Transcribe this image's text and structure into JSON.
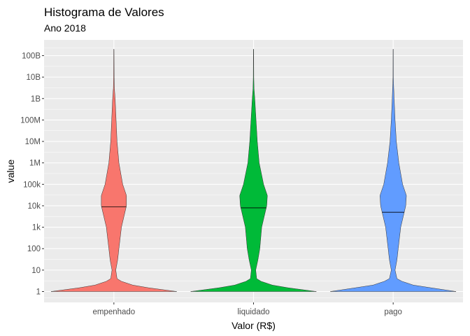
{
  "chart_data": {
    "type": "violin",
    "title": "Histograma de Valores",
    "subtitle": "Ano 2018",
    "xlabel": "Valor (R$)",
    "ylabel": "value",
    "scale": "log10",
    "ylim": [
      1,
      100000000000
    ],
    "y_tick_values": [
      1,
      10,
      100,
      1000,
      10000,
      100000,
      1000000,
      10000000,
      100000000,
      1000000000,
      10000000000,
      100000000000
    ],
    "y_ticks": [
      "1",
      "10",
      "100",
      "1k",
      "10k",
      "100k",
      "1M",
      "10M",
      "100M",
      "1B",
      "10B",
      "100B"
    ],
    "categories": [
      "empenhado",
      "liquidado",
      "pago"
    ],
    "grid": true,
    "legend": "none",
    "series": [
      {
        "color": "#F8766D",
        "median": 9000,
        "max": 200000000000,
        "density": [
          [
            1,
            1.0
          ],
          [
            1.5,
            0.55
          ],
          [
            2,
            0.3
          ],
          [
            3,
            0.12
          ],
          [
            4,
            0.05
          ],
          [
            10,
            0.03
          ],
          [
            30,
            0.06
          ],
          [
            100,
            0.08
          ],
          [
            1000,
            0.12
          ],
          [
            10000,
            0.2
          ],
          [
            30000,
            0.2
          ],
          [
            100000,
            0.14
          ],
          [
            1000000,
            0.08
          ],
          [
            10000000,
            0.05
          ],
          [
            100000000,
            0.035
          ],
          [
            1000000000,
            0.02
          ],
          [
            3000000000,
            0.008
          ],
          [
            10000000000,
            0.004
          ],
          [
            200000000000,
            0.002
          ]
        ]
      },
      {
        "color": "#00BA38",
        "median": 8000,
        "max": 200000000000,
        "density": [
          [
            1,
            1.0
          ],
          [
            1.5,
            0.55
          ],
          [
            2,
            0.3
          ],
          [
            3,
            0.12
          ],
          [
            4,
            0.05
          ],
          [
            10,
            0.035
          ],
          [
            30,
            0.07
          ],
          [
            100,
            0.1
          ],
          [
            1000,
            0.13
          ],
          [
            10000,
            0.21
          ],
          [
            30000,
            0.22
          ],
          [
            100000,
            0.16
          ],
          [
            1000000,
            0.09
          ],
          [
            10000000,
            0.06
          ],
          [
            100000000,
            0.04
          ],
          [
            1000000000,
            0.02
          ],
          [
            3000000000,
            0.008
          ],
          [
            10000000000,
            0.004
          ],
          [
            200000000000,
            0.002
          ]
        ]
      },
      {
        "color": "#619CFF",
        "median": 5000,
        "max": 200000000000,
        "density": [
          [
            1,
            1.0
          ],
          [
            1.5,
            0.6
          ],
          [
            2,
            0.32
          ],
          [
            3,
            0.14
          ],
          [
            4,
            0.06
          ],
          [
            10,
            0.03
          ],
          [
            30,
            0.06
          ],
          [
            100,
            0.08
          ],
          [
            1000,
            0.12
          ],
          [
            10000,
            0.2
          ],
          [
            30000,
            0.21
          ],
          [
            100000,
            0.15
          ],
          [
            1000000,
            0.09
          ],
          [
            10000000,
            0.05
          ],
          [
            100000000,
            0.03
          ],
          [
            1000000000,
            0.015
          ],
          [
            5000000000,
            0.006
          ],
          [
            10000000000,
            0.003
          ],
          [
            200000000000,
            0.002
          ]
        ]
      }
    ]
  }
}
